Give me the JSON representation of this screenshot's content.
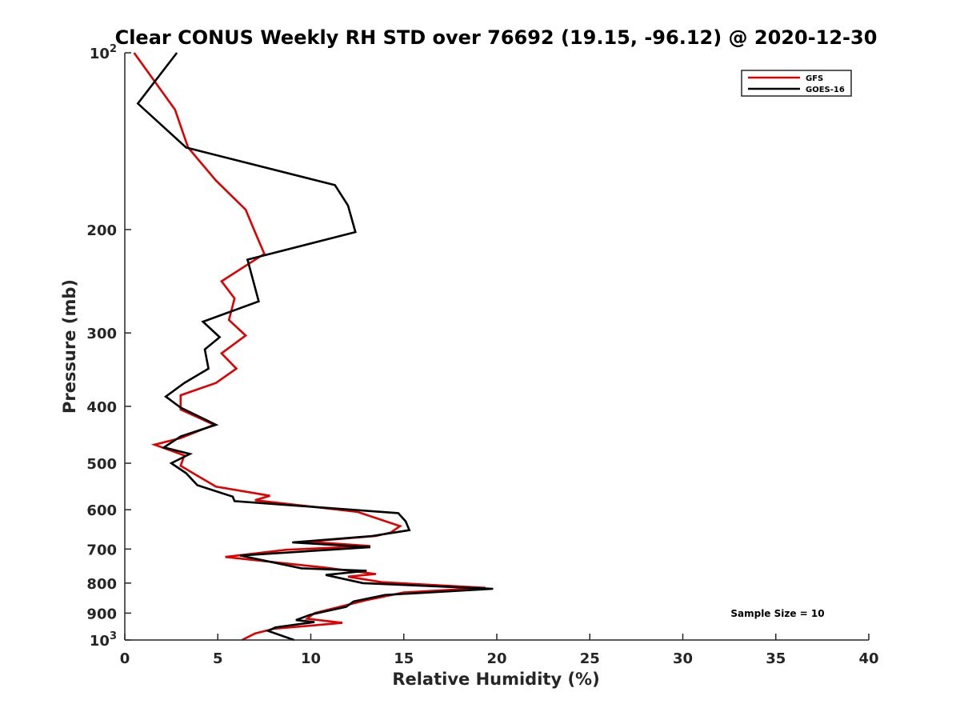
{
  "chart_data": {
    "type": "line",
    "title": "Clear CONUS Weekly RH STD over 76692 (19.15, -96.12) @ 2020-12-30",
    "xlabel": "Relative Humidity (%)",
    "ylabel": "Pressure (mb)",
    "xlim": [
      0,
      40
    ],
    "ylim": [
      100,
      1000
    ],
    "y_scale": "log",
    "y_reversed": true,
    "x_ticks": [
      0,
      5,
      10,
      15,
      20,
      25,
      30,
      35,
      40
    ],
    "x_tick_labels": [
      "0",
      "5",
      "10",
      "15",
      "20",
      "25",
      "30",
      "35",
      "40"
    ],
    "y_ticks": [
      100,
      200,
      300,
      400,
      500,
      600,
      700,
      800,
      900,
      1000
    ],
    "y_tick_labels": [
      "10^2",
      "200",
      "300",
      "400",
      "500",
      "600",
      "700",
      "800",
      "900",
      "10^3"
    ],
    "legend_position": "top-right",
    "annotation": "Sample Size = 10",
    "series": [
      {
        "name": "GFS",
        "color": "#e00000",
        "points": [
          [
            0.5,
            100
          ],
          [
            2.7,
            125
          ],
          [
            3.4,
            145
          ],
          [
            4.9,
            165
          ],
          [
            6.5,
            185
          ],
          [
            7.0,
            202
          ],
          [
            7.5,
            220
          ],
          [
            5.2,
            245
          ],
          [
            5.9,
            262
          ],
          [
            5.6,
            285
          ],
          [
            6.5,
            303
          ],
          [
            5.2,
            325
          ],
          [
            6.0,
            345
          ],
          [
            4.9,
            365
          ],
          [
            3.0,
            383
          ],
          [
            3.0,
            405
          ],
          [
            4.8,
            430
          ],
          [
            3.0,
            453
          ],
          [
            1.6,
            465
          ],
          [
            3.2,
            485
          ],
          [
            3.0,
            505
          ],
          [
            3.9,
            525
          ],
          [
            4.9,
            548
          ],
          [
            7.8,
            568
          ],
          [
            7.0,
            578
          ],
          [
            12.5,
            605
          ],
          [
            14.8,
            640
          ],
          [
            14.3,
            656
          ],
          [
            13.5,
            665
          ],
          [
            9.8,
            680
          ],
          [
            13.2,
            692
          ],
          [
            8.7,
            702
          ],
          [
            5.4,
            722
          ],
          [
            10.6,
            752
          ],
          [
            13.5,
            772
          ],
          [
            12.0,
            780
          ],
          [
            13.8,
            797
          ],
          [
            19.4,
            815
          ],
          [
            15.0,
            830
          ],
          [
            13.0,
            855
          ],
          [
            10.2,
            900
          ],
          [
            9.8,
            920
          ],
          [
            11.7,
            935
          ],
          [
            8.0,
            957
          ],
          [
            7.0,
            975
          ],
          [
            6.3,
            1000
          ]
        ]
      },
      {
        "name": "GOES-16",
        "color": "#000000",
        "points": [
          [
            2.8,
            100
          ],
          [
            0.7,
            122
          ],
          [
            3.3,
            145
          ],
          [
            11.3,
            168
          ],
          [
            12.0,
            182
          ],
          [
            12.4,
            202
          ],
          [
            6.6,
            225
          ],
          [
            7.2,
            265
          ],
          [
            4.2,
            287
          ],
          [
            5.1,
            305
          ],
          [
            4.3,
            320
          ],
          [
            4.5,
            345
          ],
          [
            3.2,
            365
          ],
          [
            2.2,
            385
          ],
          [
            3.0,
            402
          ],
          [
            4.9,
            430
          ],
          [
            3.0,
            450
          ],
          [
            2.1,
            470
          ],
          [
            3.5,
            482
          ],
          [
            2.5,
            500
          ],
          [
            3.3,
            520
          ],
          [
            3.9,
            545
          ],
          [
            5.8,
            570
          ],
          [
            5.9,
            580
          ],
          [
            14.7,
            608
          ],
          [
            15.1,
            628
          ],
          [
            15.3,
            650
          ],
          [
            13.3,
            665
          ],
          [
            9.0,
            682
          ],
          [
            13.2,
            695
          ],
          [
            6.2,
            718
          ],
          [
            9.5,
            755
          ],
          [
            13.0,
            762
          ],
          [
            10.8,
            775
          ],
          [
            12.8,
            800
          ],
          [
            19.8,
            818
          ],
          [
            14.0,
            838
          ],
          [
            12.3,
            860
          ],
          [
            11.9,
            878
          ],
          [
            10.0,
            905
          ],
          [
            9.2,
            925
          ],
          [
            10.2,
            932
          ],
          [
            8.1,
            952
          ],
          [
            7.7,
            965
          ],
          [
            9.1,
            1000
          ]
        ]
      }
    ]
  }
}
